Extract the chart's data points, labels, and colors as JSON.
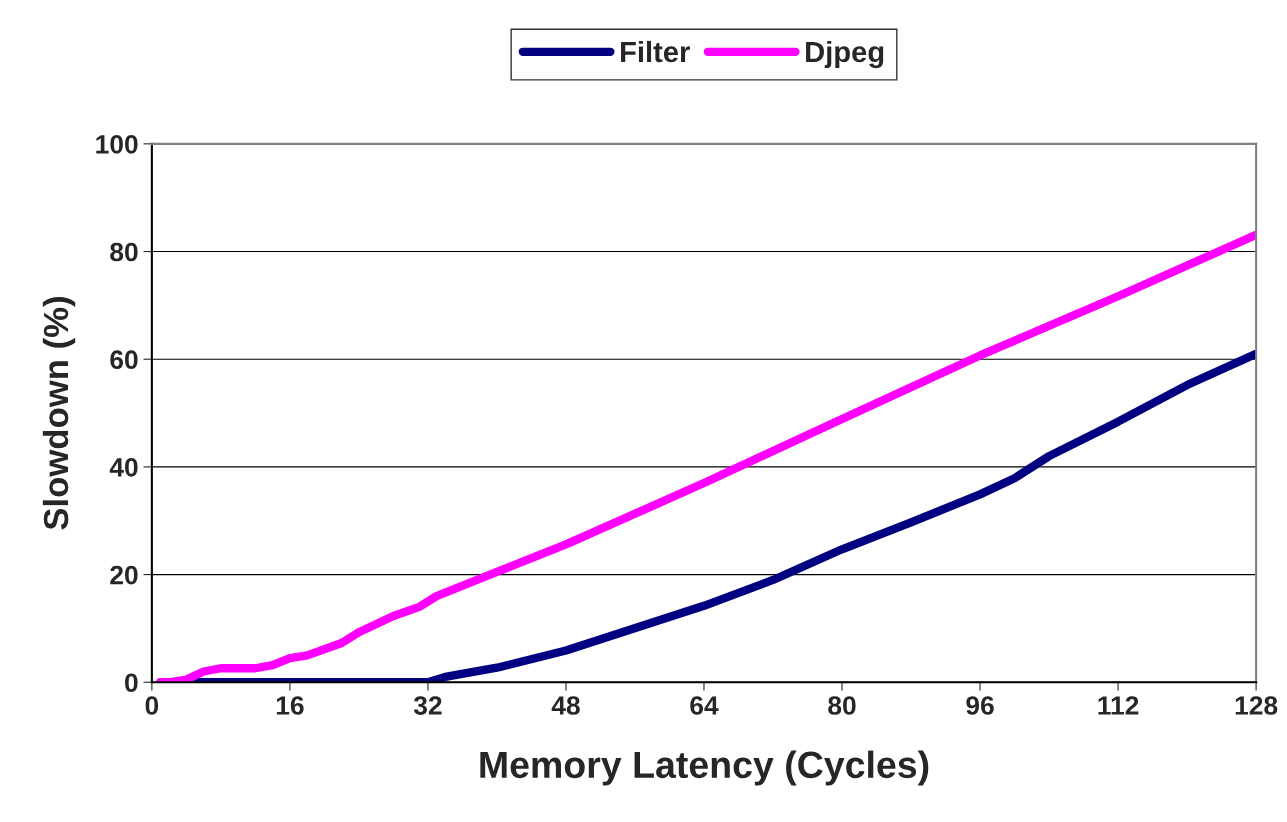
{
  "chart_data": {
    "type": "line",
    "xlabel": "Memory Latency (Cycles)",
    "ylabel": "Slowdown (%)",
    "xlim": [
      0,
      128
    ],
    "xticks": [
      0,
      16,
      32,
      48,
      64,
      80,
      96,
      112,
      128
    ],
    "ylim": [
      0,
      100
    ],
    "yticks": [
      0,
      20,
      40,
      60,
      80,
      100
    ],
    "grid": "y",
    "legend": "top",
    "marker": "none",
    "line_style": "solid",
    "series": [
      {
        "name": "Filter",
        "color": "#000080",
        "x": [
          1,
          32,
          34,
          40,
          48,
          64,
          72,
          80,
          88,
          96,
          100,
          104,
          112,
          120,
          128
        ],
        "values": [
          0,
          0,
          1,
          2.7,
          5.9,
          14.2,
          19,
          24.7,
          29.7,
          34.9,
          37.9,
          42,
          48.4,
          55.2,
          61
        ]
      },
      {
        "name": "Djpeg",
        "color": "#ff00ff",
        "x": [
          1,
          2,
          4,
          6,
          8,
          12,
          14,
          16,
          18,
          22,
          24,
          28,
          31,
          33,
          40,
          48,
          64,
          80,
          96,
          112,
          128
        ],
        "values": [
          0,
          0,
          0.5,
          2,
          2.6,
          2.6,
          3.2,
          4.5,
          5,
          7.3,
          9.3,
          12.3,
          14,
          16,
          20.5,
          25.6,
          37,
          48.9,
          60.7,
          71.7,
          83.1
        ]
      }
    ]
  }
}
